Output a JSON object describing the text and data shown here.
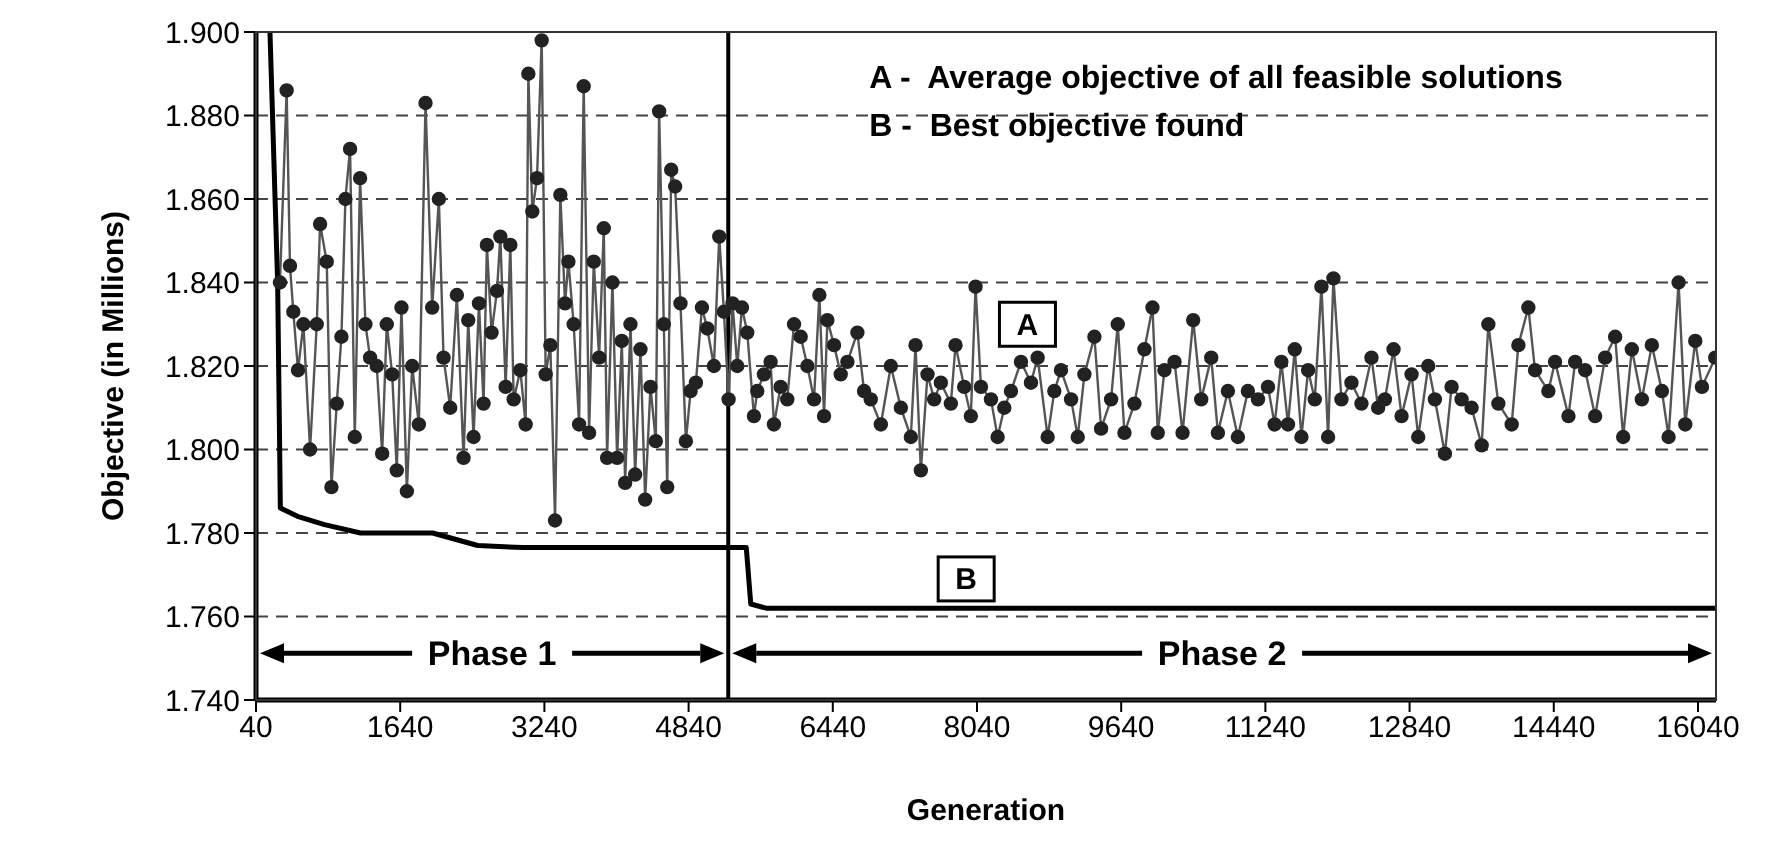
{
  "chart_data": {
    "type": "line",
    "xlabel": "Generation",
    "ylabel": "Objective (in Millions)",
    "xlim": [
      40,
      16240
    ],
    "xticks": [
      40,
      1640,
      3240,
      4840,
      6440,
      8040,
      9640,
      11240,
      12840,
      14440,
      16040
    ],
    "ylim": [
      1.74,
      1.9
    ],
    "yticks": [
      {
        "value": 1.74,
        "label": "1.740"
      },
      {
        "value": 1.76,
        "label": "1.760"
      },
      {
        "value": 1.78,
        "label": "1.780"
      },
      {
        "value": 1.8,
        "label": "1.800"
      },
      {
        "value": 1.82,
        "label": "1.820"
      },
      {
        "value": 1.84,
        "label": "1.840"
      },
      {
        "value": 1.86,
        "label": "1.860"
      },
      {
        "value": 1.88,
        "label": "1.880"
      },
      {
        "value": 1.9,
        "label": "1.900"
      }
    ],
    "grid": "y",
    "series": [
      {
        "color": "#555555",
        "marker": "circle",
        "x": [
          306,
          380,
          417,
          454,
          506,
          566,
          640,
          714,
          751,
          825,
          877,
          936,
          988,
          1032,
          1084,
          1136,
          1195,
          1254,
          1306,
          1380,
          1440,
          1491,
          1551,
          1602,
          1654,
          1714,
          1773,
          1847,
          1921,
          1995,
          2069,
          2121,
          2195,
          2269,
          2343,
          2395,
          2454,
          2514,
          2565,
          2602,
          2654,
          2714,
          2751,
          2810,
          2862,
          2899,
          2973,
          3032,
          3062,
          3106,
          3158,
          3210,
          3254,
          3306,
          3358,
          3417,
          3469,
          3506,
          3565,
          3625,
          3676,
          3736,
          3788,
          3847,
          3899,
          3936,
          3995,
          4047,
          4099,
          4136,
          4195,
          4247,
          4306,
          4358,
          4417,
          4476,
          4513,
          4565,
          4603,
          4647,
          4691,
          4750,
          4810,
          4862,
          4921,
          4988,
          5047,
          5121,
          5180,
          5232,
          5284,
          5328,
          5380,
          5432,
          5491,
          5565,
          5602,
          5676,
          5750,
          5787,
          5861,
          5935,
          6010,
          6084,
          6158,
          6232,
          6291,
          6343,
          6380,
          6454,
          6528,
          6602,
          6713,
          6787,
          6861,
          6973,
          7084,
          7195,
          7306,
          7358,
          7417,
          7491,
          7565,
          7639,
          7750,
          7802,
          7898,
          7972,
          8024,
          8084,
          8195,
          8269,
          8343,
          8417,
          8528,
          8639,
          8713,
          8824,
          8898,
          8972,
          9084,
          9158,
          9232,
          9343,
          9417,
          9528,
          9602,
          9676,
          9787,
          9898,
          9987,
          10046,
          10120,
          10232,
          10321,
          10439,
          10528,
          10639,
          10713,
          10824,
          10935,
          11046,
          11158,
          11269,
          11343,
          11417,
          11491,
          11566,
          11640,
          11714,
          11788,
          11862,
          11936,
          11995,
          12084,
          12195,
          12306,
          12417,
          12491,
          12566,
          12662,
          12751,
          12862,
          12936,
          13047,
          13121,
          13232,
          13306,
          13417,
          13528,
          13640,
          13714,
          13825,
          13973,
          14047,
          14158,
          14232,
          14380,
          14454,
          14603,
          14677,
          14788,
          14899,
          15010,
          15121,
          15210,
          15306,
          15417,
          15528,
          15640,
          15714,
          15825,
          15899,
          16010,
          16084,
          16232
        ],
        "values": [
          1.84,
          1.886,
          1.844,
          1.833,
          1.819,
          1.83,
          1.8,
          1.83,
          1.854,
          1.845,
          1.791,
          1.811,
          1.827,
          1.86,
          1.872,
          1.803,
          1.865,
          1.83,
          1.822,
          1.82,
          1.799,
          1.83,
          1.818,
          1.795,
          1.834,
          1.79,
          1.82,
          1.806,
          1.883,
          1.834,
          1.86,
          1.822,
          1.81,
          1.837,
          1.798,
          1.831,
          1.803,
          1.835,
          1.811,
          1.849,
          1.828,
          1.838,
          1.851,
          1.815,
          1.849,
          1.812,
          1.819,
          1.806,
          1.89,
          1.857,
          1.865,
          1.898,
          1.818,
          1.825,
          1.783,
          1.861,
          1.835,
          1.845,
          1.83,
          1.806,
          1.887,
          1.804,
          1.845,
          1.822,
          1.853,
          1.798,
          1.84,
          1.798,
          1.826,
          1.792,
          1.83,
          1.794,
          1.824,
          1.788,
          1.815,
          1.802,
          1.881,
          1.83,
          1.791,
          1.867,
          1.863,
          1.835,
          1.802,
          1.814,
          1.816,
          1.834,
          1.829,
          1.82,
          1.851,
          1.833,
          1.812,
          1.835,
          1.82,
          1.834,
          1.828,
          1.808,
          1.814,
          1.818,
          1.821,
          1.806,
          1.815,
          1.812,
          1.83,
          1.827,
          1.82,
          1.812,
          1.837,
          1.808,
          1.831,
          1.825,
          1.818,
          1.821,
          1.828,
          1.814,
          1.812,
          1.806,
          1.82,
          1.81,
          1.803,
          1.825,
          1.795,
          1.818,
          1.812,
          1.816,
          1.811,
          1.825,
          1.815,
          1.808,
          1.839,
          1.815,
          1.812,
          1.803,
          1.81,
          1.814,
          1.821,
          1.816,
          1.822,
          1.803,
          1.814,
          1.819,
          1.812,
          1.803,
          1.818,
          1.827,
          1.805,
          1.812,
          1.83,
          1.804,
          1.811,
          1.824,
          1.834,
          1.804,
          1.819,
          1.821,
          1.804,
          1.831,
          1.812,
          1.822,
          1.804,
          1.814,
          1.803,
          1.814,
          1.812,
          1.815,
          1.806,
          1.821,
          1.806,
          1.824,
          1.803,
          1.819,
          1.812,
          1.839,
          1.803,
          1.841,
          1.812,
          1.816,
          1.811,
          1.822,
          1.81,
          1.812,
          1.824,
          1.808,
          1.818,
          1.803,
          1.82,
          1.812,
          1.799,
          1.815,
          1.812,
          1.81,
          1.801,
          1.83,
          1.811,
          1.806,
          1.825,
          1.834,
          1.819,
          1.814,
          1.821,
          1.808,
          1.821,
          1.819,
          1.808,
          1.822,
          1.827,
          1.803,
          1.824,
          1.812,
          1.825,
          1.814,
          1.803,
          1.84,
          1.806,
          1.826,
          1.815,
          1.822
        ]
      },
      {
        "color": "#000000",
        "marker": "none",
        "x": [
          195,
          280,
          300,
          310,
          500,
          800,
          1200,
          2000,
          2500,
          3000,
          5480,
          5530,
          5700,
          16240
        ],
        "values": [
          1.9,
          1.84,
          1.805,
          1.786,
          1.784,
          1.782,
          1.78,
          1.78,
          1.777,
          1.7765,
          1.7765,
          1.763,
          1.762,
          1.762
        ]
      }
    ],
    "ref_lines": [
      {
        "axis": "x",
        "value": 5280,
        "color": "#000000"
      }
    ],
    "annotations": [
      "A -  Average objective of all feasible solutions",
      "B -  Best objective found",
      "Phase 1",
      "Phase 2",
      {
        "text": "A",
        "x": 8600,
        "y": 1.83
      },
      {
        "text": "B",
        "x": 7920,
        "y": 1.769
      }
    ]
  }
}
